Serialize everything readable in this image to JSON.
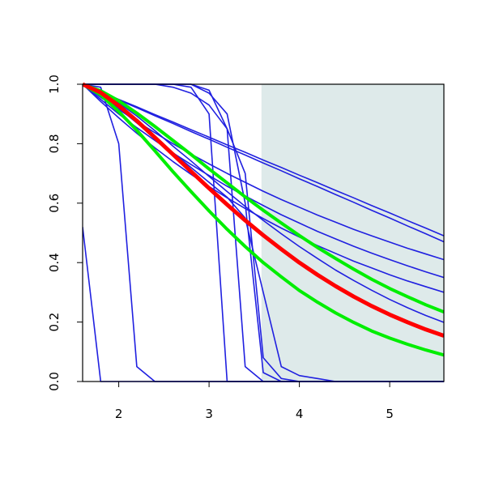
{
  "chart_data": {
    "type": "line",
    "x": [
      1.6,
      1.8,
      2.0,
      2.2,
      2.4,
      2.6,
      2.8,
      3.0,
      3.2,
      3.4,
      3.6,
      3.8,
      4.0,
      4.2,
      4.4,
      4.6,
      4.8,
      5.0,
      5.2,
      5.4,
      5.6
    ],
    "xlim": [
      1.6,
      5.6
    ],
    "xticks": [
      2,
      3,
      4,
      5
    ],
    "ylim": [
      0,
      1
    ],
    "yticks": [
      {
        "value": 0,
        "label": "0.0"
      },
      0.2,
      0.4,
      0.6,
      0.8,
      {
        "value": 1,
        "label": "1.0"
      }
    ],
    "shaded_xrange": [
      3.58,
      5.6
    ],
    "shade_color": "#deeaea",
    "series": [
      {
        "color": "#2020e0",
        "line_width": 1.6,
        "values": [
          1,
          0.975,
          0.949,
          0.924,
          0.898,
          0.873,
          0.847,
          0.822,
          0.796,
          0.771,
          0.745,
          0.72,
          0.694,
          0.669,
          0.643,
          0.618,
          0.592,
          0.567,
          0.541,
          0.516,
          0.49
        ]
      },
      {
        "color": "#2020e0",
        "line_width": 1.6,
        "values": [
          1,
          0.974,
          0.947,
          0.921,
          0.894,
          0.868,
          0.841,
          0.815,
          0.788,
          0.762,
          0.735,
          0.709,
          0.682,
          0.656,
          0.629,
          0.603,
          0.576,
          0.55,
          0.523,
          0.497,
          0.47
        ]
      },
      {
        "color": "#2020e0",
        "line_width": 1.6,
        "values": [
          1,
          0.956,
          0.915,
          0.875,
          0.837,
          0.8,
          0.765,
          0.732,
          0.7,
          0.67,
          0.64,
          0.612,
          0.586,
          0.56,
          0.536,
          0.512,
          0.49,
          0.469,
          0.448,
          0.429,
          0.41
        ]
      },
      {
        "color": "#2020e0",
        "line_width": 1.6,
        "values": [
          1,
          0.949,
          0.9,
          0.854,
          0.811,
          0.769,
          0.73,
          0.693,
          0.657,
          0.624,
          0.592,
          0.561,
          0.533,
          0.505,
          0.48,
          0.455,
          0.432,
          0.41,
          0.389,
          0.369,
          0.35
        ]
      },
      {
        "color": "#2020e0",
        "line_width": 1.6,
        "values": [
          1,
          0.942,
          0.887,
          0.835,
          0.786,
          0.74,
          0.697,
          0.656,
          0.618,
          0.582,
          0.548,
          0.516,
          0.486,
          0.457,
          0.431,
          0.405,
          0.382,
          0.359,
          0.338,
          0.319,
          0.3
        ]
      },
      {
        "color": "#2020e0",
        "line_width": 1.6,
        "values": [
          1,
          0.976,
          0.937,
          0.893,
          0.844,
          0.792,
          0.742,
          0.69,
          0.639,
          0.589,
          0.542,
          0.497,
          0.454,
          0.414,
          0.375,
          0.34,
          0.307,
          0.276,
          0.248,
          0.222,
          0.199
        ]
      },
      {
        "color": "#2020e0",
        "line_width": 1.6,
        "values": [
          0.52,
          0,
          0,
          0,
          0,
          0,
          0,
          0,
          0,
          0,
          0,
          0,
          0,
          0,
          0,
          0,
          0,
          0,
          0,
          0,
          0
        ]
      },
      {
        "color": "#2020e0",
        "line_width": 1.6,
        "values": [
          1,
          0.99,
          0.8,
          0.05,
          0,
          0,
          0,
          0,
          0,
          0,
          0,
          0,
          0,
          0,
          0,
          0,
          0,
          0,
          0,
          0,
          0
        ]
      },
      {
        "color": "#2020e0",
        "line_width": 1.6,
        "values": [
          1,
          1,
          1,
          1,
          1,
          1,
          0.99,
          0.9,
          0,
          0,
          0,
          0,
          0,
          0,
          0,
          0,
          0,
          0,
          0,
          0,
          0
        ]
      },
      {
        "color": "#2020e0",
        "line_width": 1.6,
        "values": [
          1,
          1,
          1,
          1,
          1,
          1,
          1,
          0.98,
          0.85,
          0.05,
          0,
          0,
          0,
          0,
          0,
          0,
          0,
          0,
          0,
          0,
          0
        ]
      },
      {
        "color": "#2020e0",
        "line_width": 1.6,
        "values": [
          1,
          1,
          1,
          1,
          1,
          1,
          1,
          0.97,
          0.9,
          0.6,
          0.03,
          0,
          0,
          0,
          0,
          0,
          0,
          0,
          0,
          0,
          0
        ]
      },
      {
        "color": "#2020e0",
        "line_width": 1.6,
        "values": [
          1,
          1,
          1,
          1,
          1,
          0.99,
          0.97,
          0.93,
          0.85,
          0.7,
          0.08,
          0.01,
          0,
          0,
          0,
          0,
          0,
          0,
          0,
          0,
          0
        ]
      },
      {
        "color": "#2020e0",
        "line_width": 1.6,
        "values": [
          1,
          0.96,
          0.92,
          0.87,
          0.82,
          0.77,
          0.72,
          0.67,
          0.62,
          0.55,
          0.3,
          0.05,
          0.02,
          0.01,
          0,
          0,
          0,
          0,
          0,
          0,
          0
        ]
      },
      {
        "color": "#00ee00",
        "line_width": 4,
        "values": [
          1,
          0.978,
          0.944,
          0.903,
          0.858,
          0.811,
          0.764,
          0.715,
          0.668,
          0.621,
          0.576,
          0.533,
          0.491,
          0.451,
          0.414,
          0.378,
          0.344,
          0.313,
          0.285,
          0.258,
          0.234
        ]
      },
      {
        "color": "#00ee00",
        "line_width": 4,
        "values": [
          1,
          0.964,
          0.908,
          0.845,
          0.776,
          0.706,
          0.639,
          0.574,
          0.512,
          0.454,
          0.4,
          0.352,
          0.306,
          0.267,
          0.231,
          0.199,
          0.17,
          0.146,
          0.125,
          0.106,
          0.089
        ]
      },
      {
        "color": "#ff0000",
        "line_width": 5,
        "values": [
          1,
          0.972,
          0.928,
          0.877,
          0.821,
          0.764,
          0.707,
          0.65,
          0.595,
          0.542,
          0.492,
          0.445,
          0.4,
          0.359,
          0.321,
          0.286,
          0.254,
          0.225,
          0.199,
          0.175,
          0.154
        ]
      }
    ]
  }
}
